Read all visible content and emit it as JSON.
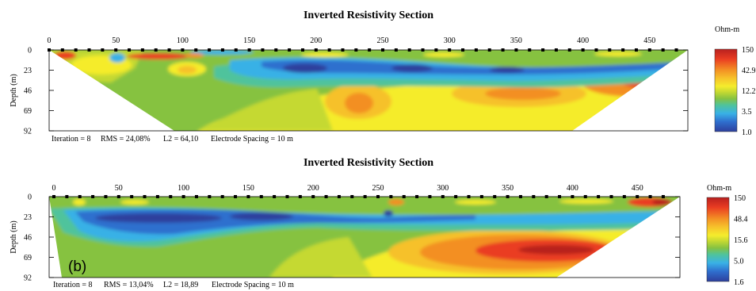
{
  "colors": {
    "scale": [
      "#2e3f9d",
      "#2f6fce",
      "#39b1e6",
      "#4fc39c",
      "#86c241",
      "#c5d932",
      "#f5ec2c",
      "#f6c12b",
      "#f38f24",
      "#ea3d22",
      "#b8201f"
    ],
    "background": "#ffffff",
    "frame": "#000000"
  },
  "chart_data": [
    {
      "type": "heatmap",
      "title": "Inverted Resistivity Section",
      "xlabel": "",
      "ylabel": "Depth (m)",
      "xlim": [
        0,
        480
      ],
      "ylim": [
        92,
        0
      ],
      "x_ticks": [
        "0",
        "50",
        "100",
        "150",
        "200",
        "250",
        "300",
        "350",
        "400",
        "450"
      ],
      "y_ticks": [
        "0",
        "23",
        "46",
        "69",
        "92"
      ],
      "colorbar": {
        "unit": "Ohm-m",
        "labels": [
          "150",
          "42.9",
          "12.2",
          "3.5",
          "1.0"
        ]
      },
      "info": {
        "iteration": "Iteration = 8",
        "rms": "RMS = 24,08%",
        "l2": "L2 = 64,10",
        "spacing": "Electrode Spacing = 10 m"
      },
      "panel_label": ""
    },
    {
      "type": "heatmap",
      "title": "Inverted Resistivity Section",
      "xlabel": "",
      "ylabel": "Depth (m)",
      "xlim": [
        0,
        480
      ],
      "ylim": [
        92,
        0
      ],
      "x_ticks": [
        "0",
        "50",
        "100",
        "150",
        "200",
        "250",
        "300",
        "350",
        "400",
        "450"
      ],
      "y_ticks": [
        "0",
        "23",
        "46",
        "69",
        "92"
      ],
      "colorbar": {
        "unit": "Ohm-m",
        "labels": [
          "150",
          "48.4",
          "15.6",
          "5.0",
          "1.6"
        ]
      },
      "info": {
        "iteration": "Iteration = 8",
        "rms": "RMS = 13,04%",
        "l2": "L2 = 18,89",
        "spacing": "Electrode Spacing = 10 m"
      },
      "panel_label": "(b)"
    }
  ]
}
